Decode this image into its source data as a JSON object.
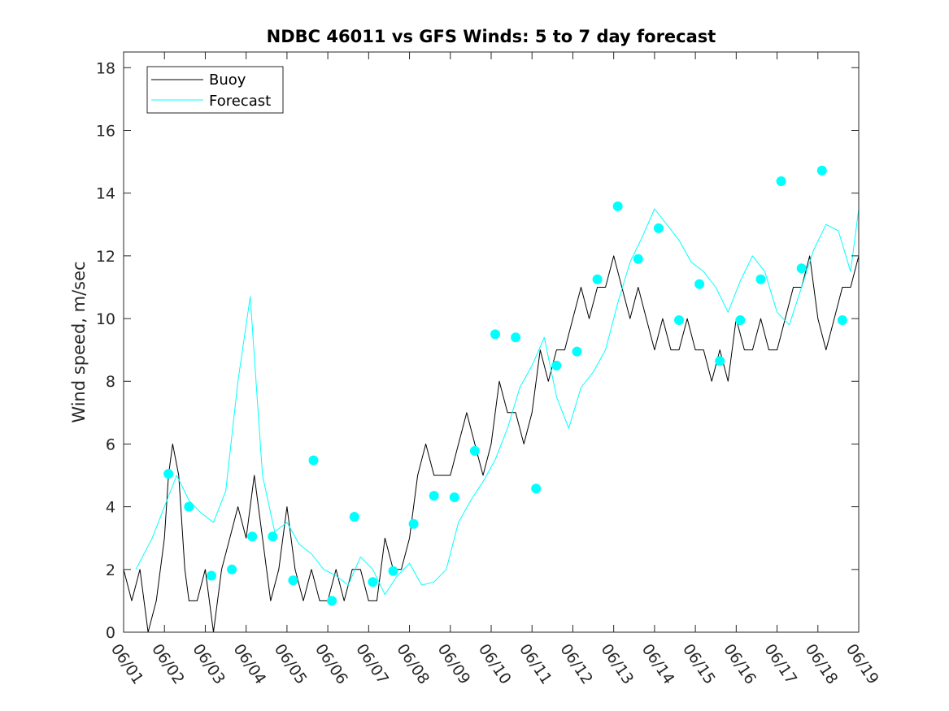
{
  "chart_data": {
    "type": "line",
    "title": "NDBC 46011 vs GFS Winds: 5 to 7 day forecast",
    "xlabel": "",
    "ylabel": "Wind speed, m/sec",
    "x_unit": "days",
    "xlim": [
      0,
      18
    ],
    "ylim": [
      0,
      18.5
    ],
    "x_ticks": [
      0,
      1,
      2,
      3,
      4,
      5,
      6,
      7,
      8,
      9,
      10,
      11,
      12,
      13,
      14,
      15,
      16,
      17,
      18
    ],
    "x_tick_labels": [
      "06/01",
      "06/02",
      "06/03",
      "06/04",
      "06/05",
      "06/06",
      "06/07",
      "06/08",
      "06/09",
      "06/10",
      "06/11",
      "06/12",
      "06/13",
      "06/14",
      "06/15",
      "06/16",
      "06/17",
      "06/18",
      "06/19"
    ],
    "y_ticks": [
      0,
      2,
      4,
      6,
      8,
      10,
      12,
      14,
      16,
      18
    ],
    "y_tick_labels": [
      "0",
      "2",
      "4",
      "6",
      "8",
      "10",
      "12",
      "14",
      "16",
      "18"
    ],
    "grid": false,
    "legend_position": "top-left",
    "legend": [
      {
        "label": "Buoy",
        "color": "#000000"
      },
      {
        "label": "Forecast",
        "color": "#00ffff"
      }
    ],
    "series": [
      {
        "name": "Buoy",
        "color": "#000000",
        "x": [
          0,
          0.2,
          0.4,
          0.6,
          0.8,
          1.0,
          1.1,
          1.2,
          1.35,
          1.5,
          1.6,
          1.8,
          2.0,
          2.2,
          2.4,
          2.6,
          2.8,
          3.0,
          3.2,
          3.4,
          3.6,
          3.8,
          4.0,
          4.2,
          4.4,
          4.6,
          4.8,
          5.0,
          5.2,
          5.4,
          5.6,
          5.8,
          6.0,
          6.2,
          6.4,
          6.6,
          6.8,
          7.0,
          7.2,
          7.4,
          7.6,
          7.8,
          8.0,
          8.2,
          8.4,
          8.6,
          8.8,
          9.0,
          9.2,
          9.4,
          9.6,
          9.8,
          10.0,
          10.2,
          10.4,
          10.6,
          10.8,
          11.0,
          11.2,
          11.4,
          11.6,
          11.8,
          12.0,
          12.2,
          12.4,
          12.6,
          12.8,
          13.0,
          13.2,
          13.4,
          13.6,
          13.8,
          14.0,
          14.2,
          14.4,
          14.6,
          14.8,
          15.0,
          15.2,
          15.4,
          15.6,
          15.8,
          16.0,
          16.2,
          16.4,
          16.6,
          16.8,
          17.0,
          17.2,
          17.4,
          17.6,
          17.8,
          18.0
        ],
        "values": [
          2,
          1,
          2,
          0,
          1,
          3,
          5,
          6,
          5,
          2,
          1,
          1,
          2,
          0,
          2,
          3,
          4,
          3,
          5,
          3,
          1,
          2,
          4,
          2,
          1,
          2,
          1,
          1,
          2,
          1,
          2,
          2,
          1,
          1,
          3,
          2,
          2,
          3,
          5,
          6,
          5,
          5,
          5,
          6,
          7,
          6,
          5,
          6,
          8,
          7,
          7,
          6,
          7,
          9,
          8,
          9,
          9,
          10,
          11,
          10,
          11,
          11,
          12,
          11,
          10,
          11,
          10,
          9,
          10,
          9,
          9,
          10,
          9,
          9,
          8,
          9,
          8,
          10,
          9,
          9,
          10,
          9,
          9,
          10,
          11,
          11,
          12,
          10,
          9,
          10,
          11,
          11,
          12
        ]
      },
      {
        "name": "Forecast",
        "color": "#00ffff",
        "x": [
          0.3,
          0.7,
          1.0,
          1.3,
          1.6,
          1.9,
          2.2,
          2.5,
          2.8,
          3.1,
          3.4,
          3.7,
          4.0,
          4.3,
          4.6,
          4.9,
          5.2,
          5.5,
          5.8,
          6.1,
          6.4,
          6.7,
          7.0,
          7.3,
          7.6,
          7.9,
          8.2,
          8.5,
          8.8,
          9.1,
          9.4,
          9.7,
          10.0,
          10.3,
          10.6,
          10.9,
          11.2,
          11.5,
          11.8,
          12.1,
          12.4,
          12.7,
          13.0,
          13.3,
          13.6,
          13.9,
          14.2,
          14.5,
          14.8,
          15.1,
          15.4,
          15.7,
          16.0,
          16.3,
          16.6,
          16.9,
          17.2,
          17.5,
          17.8,
          18.0
        ],
        "values": [
          2.0,
          3.0,
          4.0,
          5.0,
          4.2,
          3.8,
          3.5,
          4.5,
          8.0,
          10.7,
          5.0,
          3.2,
          3.5,
          2.8,
          2.5,
          2.0,
          1.8,
          1.5,
          2.4,
          2.0,
          1.2,
          1.8,
          2.2,
          1.5,
          1.6,
          2.0,
          3.5,
          4.2,
          4.8,
          5.5,
          6.5,
          7.8,
          8.5,
          9.4,
          7.5,
          6.5,
          7.8,
          8.3,
          9.0,
          10.5,
          11.8,
          12.6,
          13.5,
          13.0,
          12.5,
          11.8,
          11.5,
          11.0,
          10.2,
          11.2,
          12.0,
          11.5,
          10.2,
          9.8,
          11.0,
          12.2,
          13.0,
          12.8,
          11.5,
          13.5
        ]
      }
    ],
    "forecast_markers": {
      "name": "Forecast",
      "color": "#00ffff",
      "x": [
        1.1,
        1.6,
        2.15,
        2.65,
        3.15,
        3.65,
        4.15,
        4.65,
        5.1,
        5.65,
        6.1,
        6.6,
        7.1,
        7.6,
        8.1,
        8.6,
        9.1,
        9.6,
        10.1,
        10.6,
        11.1,
        11.6,
        12.1,
        12.6,
        13.1,
        13.6,
        14.1,
        14.6,
        15.1,
        15.6,
        16.1,
        16.6,
        17.1,
        17.6
      ],
      "values": [
        5.05,
        4.0,
        1.8,
        2.0,
        3.05,
        3.05,
        1.65,
        5.48,
        1.0,
        3.68,
        1.6,
        1.95,
        3.45,
        4.35,
        4.3,
        5.78,
        9.5,
        9.4,
        4.58,
        8.5,
        8.95,
        11.25,
        13.58,
        11.9,
        12.88,
        9.95,
        11.1,
        8.65,
        9.95,
        11.25,
        14.38,
        11.6,
        14.72,
        9.95
      ]
    }
  }
}
